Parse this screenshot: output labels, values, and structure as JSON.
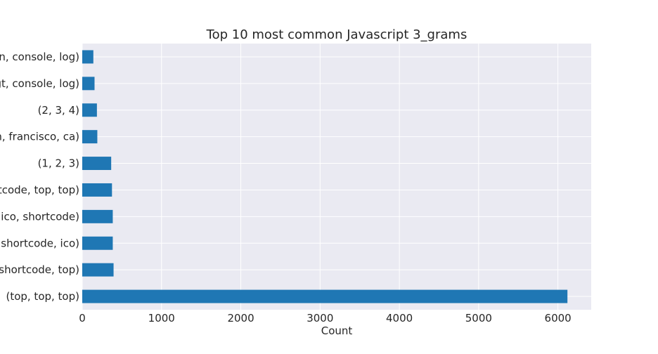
{
  "chart_data": {
    "type": "bar",
    "orientation": "horizontal",
    "title": "Top 10 most common Javascript 3_grams",
    "xlabel": "Count",
    "ylabel": "",
    "xlim": [
      0,
      6420
    ],
    "xticks": [
      0,
      1000,
      2000,
      3000,
      4000,
      5000,
      6000
    ],
    "categories": [
      "(top, top, top)",
      "(top, shortcode, top)",
      "(ico, shortcode, ico)",
      "(shortcode, ico, shortcode)",
      "(shortcode, top, top)",
      "(1, 2, 3)",
      "(san, francisco, ca)",
      "(2, 3, 4)",
      "(gt, console, log)",
      "(function, console, log)"
    ],
    "values": [
      6120,
      395,
      385,
      385,
      375,
      365,
      190,
      185,
      155,
      140
    ],
    "grid": true,
    "bar_color": "#1f77b4",
    "background_color": "#eaeaf2"
  }
}
